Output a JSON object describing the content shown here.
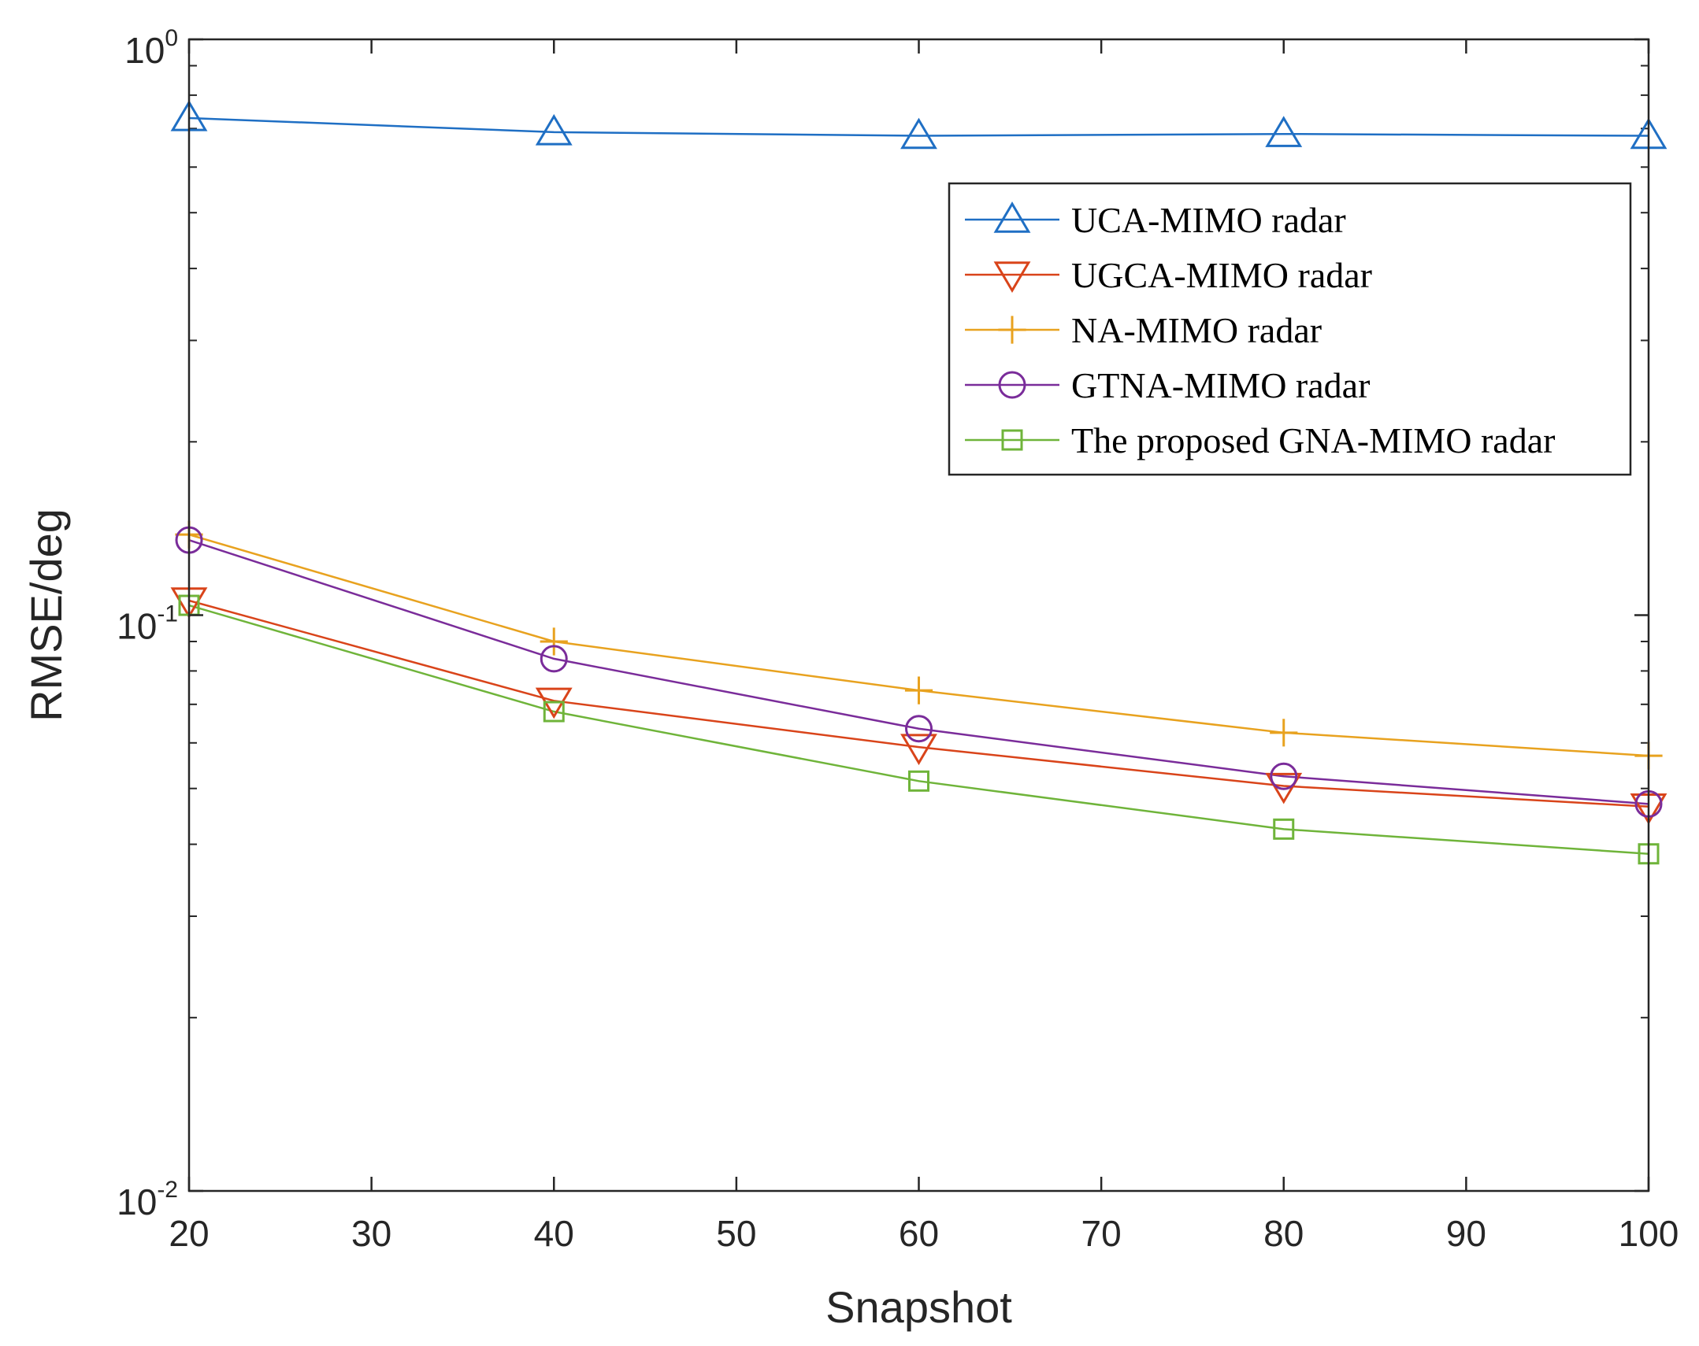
{
  "chart_data": {
    "type": "line",
    "title": "",
    "xlabel": "Snapshot",
    "ylabel": "RMSE/deg",
    "xlim": [
      20,
      100
    ],
    "ylim": [
      0.01,
      1
    ],
    "yscale": "log",
    "x_ticks": [
      20,
      30,
      40,
      50,
      60,
      70,
      80,
      90,
      100
    ],
    "y_ticks": [
      {
        "value": 0.01,
        "base": "10",
        "exp": "-2"
      },
      {
        "value": 0.1,
        "base": "10",
        "exp": "-1"
      },
      {
        "value": 1,
        "base": "10",
        "exp": "0"
      }
    ],
    "grid": false,
    "legend_position": "top-right",
    "x": [
      20,
      40,
      60,
      80,
      100
    ],
    "series": [
      {
        "name": "UCA-MIMO radar",
        "marker": "triangle-up",
        "color": "#1f6fc4",
        "values": [
          0.73,
          0.69,
          0.68,
          0.685,
          0.68
        ]
      },
      {
        "name": "UGCA-MIMO radar",
        "marker": "triangle-down",
        "color": "#d9441a",
        "values": [
          0.106,
          0.071,
          0.059,
          0.0505,
          0.0465
        ]
      },
      {
        "name": "NA-MIMO radar",
        "marker": "plus",
        "color": "#e8a21f",
        "values": [
          0.138,
          0.09,
          0.074,
          0.0625,
          0.057
        ]
      },
      {
        "name": "GTNA-MIMO radar",
        "marker": "circle",
        "color": "#7a2c9a",
        "values": [
          0.135,
          0.084,
          0.0635,
          0.0525,
          0.047
        ]
      },
      {
        "name": "The proposed GNA-MIMO radar",
        "marker": "square",
        "color": "#6fb43a",
        "values": [
          0.104,
          0.068,
          0.0515,
          0.0425,
          0.0385
        ]
      }
    ]
  }
}
